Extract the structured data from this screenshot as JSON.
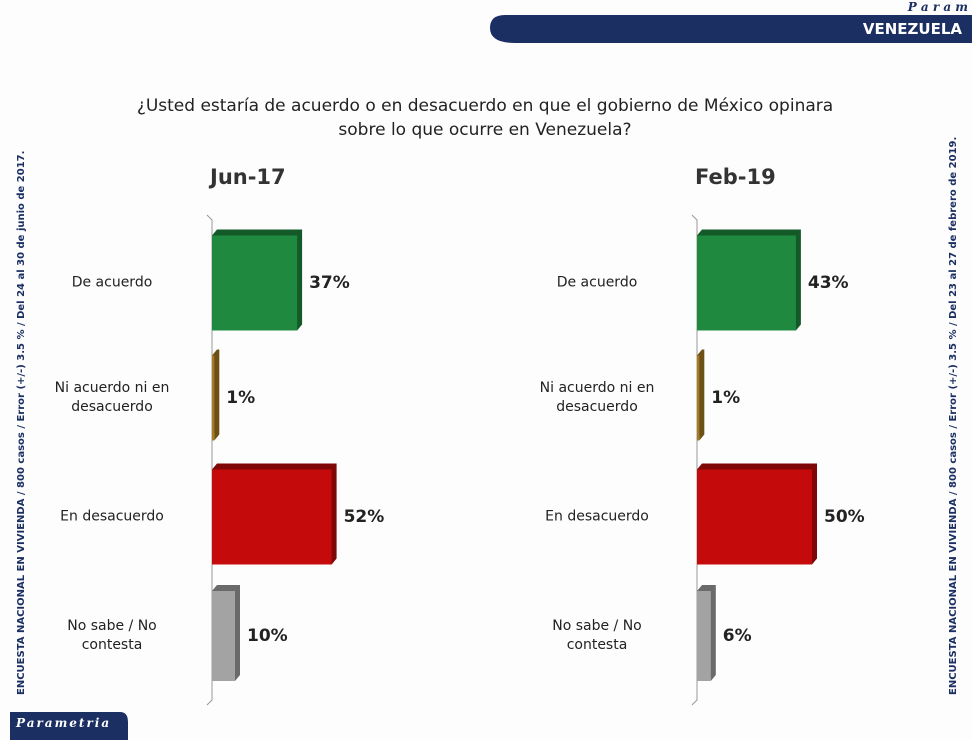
{
  "header": {
    "brand": "P a r a m",
    "section": "VENEZUELA"
  },
  "question": "¿Usted estaría de acuerdo o en desacuerdo en que el gobierno de México opinara sobre lo que ocurre en Venezuela?",
  "notes": [
    "ENCUESTA NACIONAL EN VIVIENDA / 800 casos / Error (+/-) 3.5 % / Del 24 al 30 de junio de 2017.",
    "ENCUESTA NACIONAL EN VIVIENDA / 800 casos / Error (+/-) 3.5 % / Del 23 al 27 de febrero de 2019."
  ],
  "footer": "Parametria",
  "chart_data": [
    {
      "type": "bar",
      "title": "Jun-17",
      "categories": [
        "De acuerdo",
        "Ni acuerdo ni en desacuerdo",
        "En desacuerdo",
        "No sabe / No contesta"
      ],
      "values": [
        37,
        1,
        52,
        10
      ],
      "value_labels": [
        "37%",
        "1%",
        "52%",
        "10%"
      ],
      "colors": [
        "#1f8a3f",
        "#a87b22",
        "#c40a0a",
        "#a3a3a3"
      ]
    },
    {
      "type": "bar",
      "title": "Feb-19",
      "categories": [
        "De acuerdo",
        "Ni acuerdo ni en desacuerdo",
        "En desacuerdo",
        "No sabe / No contesta"
      ],
      "values": [
        43,
        1,
        50,
        6
      ],
      "value_labels": [
        "43%",
        "1%",
        "50%",
        "6%"
      ],
      "colors": [
        "#1f8a3f",
        "#a87b22",
        "#c40a0a",
        "#a3a3a3"
      ]
    }
  ]
}
